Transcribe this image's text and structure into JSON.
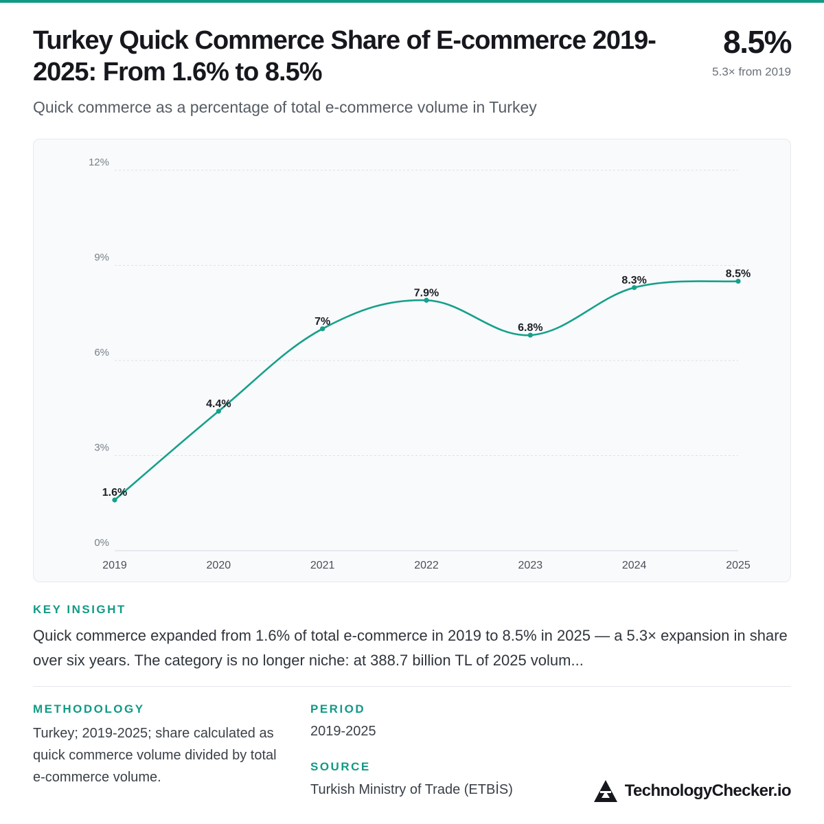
{
  "header": {
    "title": "Turkey Quick Commerce Share of E-commerce 2019-2025: From 1.6% to 8.5%",
    "subtitle": "Quick commerce as a percentage of total e-commerce volume in Turkey",
    "kpi_value": "8.5%",
    "kpi_note": "5.3× from 2019"
  },
  "colors": {
    "accent": "#119a85",
    "line": "#16a08a",
    "panel_bg": "#f8fafc",
    "text_dark": "#16181d",
    "grid": "#dde1e5"
  },
  "chart_data": {
    "type": "line",
    "title": "",
    "xlabel": "",
    "ylabel": "",
    "categories": [
      "2019",
      "2020",
      "2021",
      "2022",
      "2023",
      "2024",
      "2025"
    ],
    "series": [
      {
        "values": [
          1.6,
          4.4,
          7.0,
          7.9,
          6.8,
          8.3,
          8.5
        ]
      }
    ],
    "data_labels": [
      "1.6%",
      "4.4%",
      "7%",
      "7.9%",
      "6.8%",
      "8.3%",
      "8.5%"
    ],
    "ylim": [
      0,
      12
    ],
    "yticks": [
      0,
      3,
      6,
      9,
      12
    ],
    "ytick_labels": [
      "0%",
      "3%",
      "6%",
      "9%",
      "12%"
    ],
    "grid": true,
    "smooth": true,
    "legend": "none"
  },
  "insight": {
    "label": "KEY INSIGHT",
    "text": "Quick commerce expanded from 1.6% of total e-commerce in 2019 to 8.5% in 2025 — a 5.3× expansion in share over six years. The category is no longer niche: at 388.7 billion TL of 2025 volum..."
  },
  "methodology": {
    "label": "METHODOLOGY",
    "text": "Turkey; 2019-2025; share calculated as quick commerce volume divided by total e-commerce volume."
  },
  "period": {
    "label": "PERIOD",
    "text": "2019-2025"
  },
  "source": {
    "label": "SOURCE",
    "text": "Turkish Ministry of Trade (ETBİS)"
  },
  "brand": {
    "name": "TechnologyChecker.io",
    "icon": "triangle-logo-icon"
  }
}
